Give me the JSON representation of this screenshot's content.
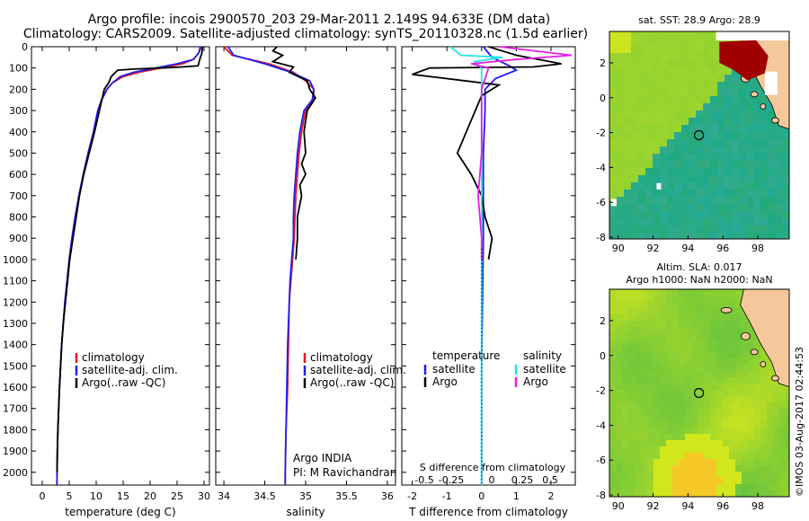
{
  "title_line1": "Argo profile: incois 2900570_203 29-Mar-2011 2.149S 94.633E (DM data)",
  "title_line2": "Climatology: CARS2009. Satellite-adjusted climatology: synTS_20110328.nc (1.5d earlier)",
  "footer_text": "©IMOS 03-Aug-2017 02:44:53",
  "colors": {
    "red": "#e8141e",
    "blue": "#1e1ef0",
    "black": "#000000",
    "cyan": "#1ee6e6",
    "magenta": "#e61ee6",
    "land": "#f5c89b",
    "sst_anom": "#a00000"
  },
  "chart_data": [
    {
      "type": "line",
      "id": "temperature",
      "xlabel": "temperature (deg C)",
      "ylabel": "",
      "xlim": [
        -2,
        31
      ],
      "ylim": [
        2060,
        0
      ],
      "xticks": [
        0,
        5,
        10,
        15,
        20,
        25,
        30
      ],
      "yticks": [
        0,
        100,
        200,
        300,
        400,
        500,
        600,
        700,
        800,
        900,
        1000,
        1100,
        1200,
        1300,
        1400,
        1500,
        1600,
        1700,
        1800,
        1900,
        2000
      ],
      "legend": [
        "climatology",
        "satellite-adj. clim.",
        "Argo(..raw -QC)"
      ],
      "series": [
        {
          "name": "climatology",
          "color": "red",
          "points": [
            [
              29.5,
              0
            ],
            [
              29,
              30
            ],
            [
              28,
              60
            ],
            [
              26,
              80
            ],
            [
              22,
              100
            ],
            [
              18,
              120
            ],
            [
              15,
              140
            ],
            [
              13,
              170
            ],
            [
              12,
              200
            ],
            [
              11,
              250
            ],
            [
              10.3,
              300
            ],
            [
              9.5,
              400
            ],
            [
              8.5,
              500
            ],
            [
              7.6,
              600
            ],
            [
              6.8,
              700
            ],
            [
              6.1,
              800
            ],
            [
              5.5,
              900
            ],
            [
              5,
              1000
            ],
            [
              4.6,
              1100
            ],
            [
              4.2,
              1200
            ],
            [
              3.9,
              1300
            ],
            [
              3.6,
              1400
            ],
            [
              3.4,
              1500
            ],
            [
              3.2,
              1600
            ],
            [
              3.05,
              1700
            ],
            [
              2.9,
              1800
            ],
            [
              2.8,
              1900
            ],
            [
              2.75,
              2000
            ],
            [
              2.72,
              2060
            ]
          ]
        },
        {
          "name": "satellite-adj. clim.",
          "color": "blue",
          "points": [
            [
              29.3,
              0
            ],
            [
              29,
              30
            ],
            [
              28,
              60
            ],
            [
              25,
              80
            ],
            [
              21,
              100
            ],
            [
              17,
              120
            ],
            [
              14.5,
              140
            ],
            [
              13,
              170
            ],
            [
              12,
              200
            ],
            [
              11,
              250
            ],
            [
              10.3,
              300
            ],
            [
              9.5,
              400
            ],
            [
              8.5,
              500
            ],
            [
              7.6,
              600
            ],
            [
              6.8,
              700
            ],
            [
              6.1,
              800
            ],
            [
              5.5,
              900
            ],
            [
              5,
              1000
            ],
            [
              4.6,
              1100
            ],
            [
              4.2,
              1200
            ],
            [
              3.9,
              1300
            ],
            [
              3.6,
              1400
            ],
            [
              3.4,
              1500
            ],
            [
              3.2,
              1600
            ],
            [
              3.05,
              1700
            ],
            [
              2.9,
              1800
            ],
            [
              2.8,
              1900
            ],
            [
              2.75,
              2000
            ],
            [
              2.72,
              2060
            ]
          ]
        },
        {
          "name": "Argo(..raw -QC)",
          "color": "black",
          "points": [
            [
              29.7,
              0
            ],
            [
              29.6,
              30
            ],
            [
              29.2,
              60
            ],
            [
              28.9,
              90
            ],
            [
              26,
              95
            ],
            [
              22,
              100
            ],
            [
              17,
              105
            ],
            [
              14,
              110
            ],
            [
              12.8,
              140
            ],
            [
              12.3,
              170
            ],
            [
              11.5,
              200
            ],
            [
              10.6,
              300
            ],
            [
              9.7,
              400
            ],
            [
              8.7,
              500
            ],
            [
              7.7,
              600
            ],
            [
              6.9,
              700
            ],
            [
              6.3,
              800
            ],
            [
              5.7,
              900
            ],
            [
              5.1,
              1000
            ],
            [
              4.7,
              1100
            ],
            [
              4.3,
              1200
            ],
            [
              3.9,
              1300
            ],
            [
              3.6,
              1400
            ],
            [
              3.4,
              1500
            ],
            [
              3.2,
              1600
            ],
            [
              3.05,
              1700
            ],
            [
              2.9,
              1800
            ],
            [
              2.8,
              1900
            ],
            [
              2.75,
              2000
            ]
          ]
        }
      ]
    },
    {
      "type": "line",
      "id": "salinity",
      "xlabel": "salinity",
      "xlim": [
        33.9,
        36.1
      ],
      "ylim": [
        2060,
        0
      ],
      "xticks": [
        34,
        34.5,
        35,
        35.5,
        36
      ],
      "legend": [
        "climatology",
        "satellite-adj. clim.",
        "Argo(..raw -QC)"
      ],
      "annotation": [
        "Argo INDIA",
        "PI: M Ravichandran"
      ],
      "series": [
        {
          "name": "climatology",
          "color": "red",
          "points": [
            [
              34.0,
              0
            ],
            [
              34.1,
              40
            ],
            [
              34.55,
              80
            ],
            [
              34.85,
              120
            ],
            [
              35.0,
              160
            ],
            [
              35.1,
              200
            ],
            [
              35.1,
              250
            ],
            [
              35.0,
              300
            ],
            [
              34.95,
              400
            ],
            [
              34.92,
              500
            ],
            [
              34.9,
              600
            ],
            [
              34.88,
              700
            ],
            [
              34.87,
              800
            ],
            [
              34.86,
              900
            ],
            [
              34.84,
              1000
            ],
            [
              34.82,
              1100
            ],
            [
              34.8,
              1200
            ],
            [
              34.79,
              1400
            ],
            [
              34.78,
              1600
            ],
            [
              34.76,
              1800
            ],
            [
              34.75,
              2000
            ],
            [
              34.75,
              2060
            ]
          ]
        },
        {
          "name": "satellite-adj. clim.",
          "color": "blue",
          "points": [
            [
              34.05,
              0
            ],
            [
              34.12,
              40
            ],
            [
              34.5,
              80
            ],
            [
              34.82,
              120
            ],
            [
              35.05,
              160
            ],
            [
              35.1,
              200
            ],
            [
              35.08,
              250
            ],
            [
              34.98,
              300
            ],
            [
              34.93,
              400
            ],
            [
              34.9,
              500
            ],
            [
              34.88,
              600
            ],
            [
              34.86,
              700
            ],
            [
              34.85,
              800
            ],
            [
              34.85,
              900
            ],
            [
              34.83,
              1000
            ],
            [
              34.81,
              1100
            ],
            [
              34.8,
              1200
            ],
            [
              34.78,
              1400
            ],
            [
              34.77,
              1600
            ],
            [
              34.76,
              1800
            ],
            [
              34.75,
              2000
            ],
            [
              34.75,
              2060
            ]
          ]
        },
        {
          "name": "Argo(..raw -QC)",
          "color": "black",
          "points": [
            [
              34.65,
              0
            ],
            [
              34.6,
              20
            ],
            [
              34.72,
              40
            ],
            [
              34.6,
              70
            ],
            [
              34.85,
              95
            ],
            [
              34.8,
              120
            ],
            [
              35.02,
              160
            ],
            [
              35.05,
              200
            ],
            [
              35.12,
              240
            ],
            [
              35.02,
              300
            ],
            [
              34.98,
              400
            ],
            [
              35.0,
              500
            ],
            [
              34.95,
              550
            ],
            [
              35.0,
              600
            ],
            [
              34.93,
              650
            ],
            [
              34.95,
              700
            ],
            [
              34.9,
              800
            ],
            [
              34.9,
              900
            ],
            [
              34.88,
              1000
            ]
          ]
        }
      ]
    },
    {
      "type": "line",
      "id": "difference",
      "xlabel": "T difference from climatology",
      "xlim": [
        -2.3,
        2.7
      ],
      "ylim": [
        2060,
        0
      ],
      "xticks": [
        -2,
        -1,
        0,
        1,
        2
      ],
      "s_label": "S difference from climatology",
      "s_ticks": [
        "-0.5",
        "-0.25",
        "0",
        "0.25",
        "0.5"
      ],
      "legend_headers": [
        "temperature",
        "salinity"
      ],
      "legend": [
        "satellite",
        "Argo",
        "satellite",
        "Argo"
      ],
      "series": [
        {
          "name": "satellite",
          "group": "temperature",
          "color": "blue",
          "points": [
            [
              0.05,
              0
            ],
            [
              0.3,
              50
            ],
            [
              0.8,
              90
            ],
            [
              1.0,
              110
            ],
            [
              0.4,
              150
            ],
            [
              0.1,
              200
            ],
            [
              0.1,
              300
            ],
            [
              0.05,
              500
            ],
            [
              0.05,
              700
            ],
            [
              0.05,
              900
            ],
            [
              0.0,
              1500
            ],
            [
              0.0,
              2060
            ]
          ]
        },
        {
          "name": "Argo",
          "group": "temperature",
          "color": "black",
          "points": [
            [
              0.2,
              0
            ],
            [
              1.0,
              40
            ],
            [
              2.3,
              80
            ],
            [
              1.5,
              95
            ],
            [
              -1.5,
              100
            ],
            [
              -2.0,
              130
            ],
            [
              -1.0,
              150
            ],
            [
              0.5,
              180
            ],
            [
              0.0,
              230
            ],
            [
              -0.7,
              500
            ],
            [
              -0.3,
              600
            ],
            [
              0.0,
              700
            ],
            [
              0.1,
              800
            ],
            [
              0.3,
              900
            ],
            [
              0.2,
              1000
            ]
          ]
        },
        {
          "name": "satellite",
          "group": "salinity",
          "color": "cyan",
          "points": [
            [
              -0.9,
              0
            ],
            [
              -0.6,
              40
            ],
            [
              0.6,
              50
            ],
            [
              -0.2,
              70
            ],
            [
              0.0,
              100
            ],
            [
              0.0,
              300
            ],
            [
              0.0,
              1000
            ],
            [
              0.0,
              2060
            ]
          ]
        },
        {
          "name": "Argo",
          "group": "salinity",
          "color": "magenta",
          "points": [
            [
              0.5,
              0
            ],
            [
              2.6,
              40
            ],
            [
              1.0,
              60
            ],
            [
              -0.3,
              80
            ],
            [
              0.2,
              100
            ],
            [
              0.0,
              200
            ],
            [
              0.0,
              300
            ],
            [
              0.0,
              500
            ],
            [
              -0.1,
              700
            ],
            [
              0.0,
              900
            ],
            [
              0.0,
              1000
            ]
          ]
        }
      ]
    },
    {
      "type": "heatmap",
      "id": "sst_map",
      "title": "sat. SST: 28.9 Argo: 28.9",
      "xticks": [
        90,
        92,
        94,
        96,
        98
      ],
      "yticks": [
        2,
        0,
        -2,
        -4,
        -6,
        -8
      ],
      "xlim": [
        89.5,
        99.8
      ],
      "ylim": [
        -8.1,
        3.8
      ],
      "marker": [
        94.63,
        -2.15
      ]
    },
    {
      "type": "heatmap",
      "id": "sla_map",
      "title_line1": "Altim. SLA: 0.017",
      "title_line2": "Argo h1000: NaN h2000: NaN",
      "xticks": [
        90,
        92,
        94,
        96,
        98
      ],
      "yticks": [
        2,
        0,
        -2,
        -4,
        -6,
        -8
      ],
      "xlim": [
        89.5,
        99.8
      ],
      "ylim": [
        -8.1,
        3.8
      ],
      "marker": [
        94.63,
        -2.15
      ]
    }
  ]
}
